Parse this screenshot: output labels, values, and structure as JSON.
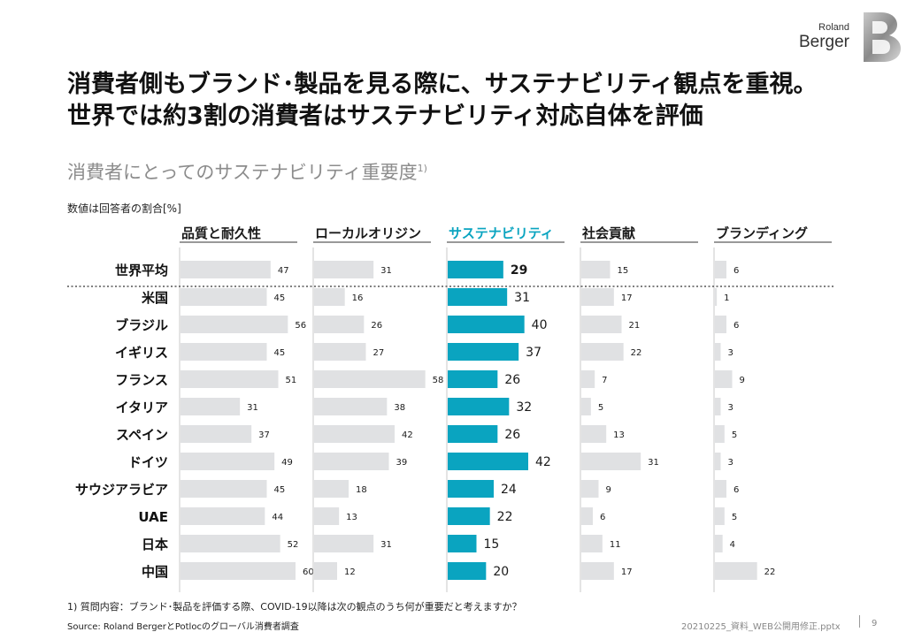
{
  "logo": {
    "line1": "Roland",
    "line2": "Berger"
  },
  "title": {
    "line1": "消費者側もブランド･製品を見る際に、サステナビリティ観点を重視。",
    "line2": "世界では約3割の消費者はサステナビリティ対応自体を評価"
  },
  "subtitle": {
    "text": "消費者にとってのサステナビリティ重要度",
    "sup": "1)"
  },
  "unit_note": "数値は回答者の割合[%]",
  "footnote": "1) 質問内容：ブランド･製品を評価する際、COVID-19以降は次の観点のうち何が重要だと考えますか？",
  "source": "Source: Roland BergerとPotlocのグローバル消費者調査",
  "filename": "20210225_資料_WEB公開用修正.pptx",
  "page_number": "9",
  "colors": {
    "gray_bar": "#e0e1e3",
    "highlight_bar": "#0aa4c0",
    "highlight_text": "#0aa4c0"
  },
  "chart_data": {
    "type": "bar",
    "orientation": "horizontal",
    "layout": "small-multiples",
    "unit": "%",
    "highlight_series": "サステナビリティ",
    "categories": [
      "世界平均",
      "米国",
      "ブラジル",
      "イギリス",
      "フランス",
      "イタリア",
      "スペイン",
      "ドイツ",
      "サウジアラビア",
      "UAE",
      "日本",
      "中国"
    ],
    "series": [
      {
        "name": "品質と耐久性",
        "values": [
          47,
          45,
          56,
          45,
          51,
          31,
          37,
          49,
          45,
          44,
          52,
          60
        ]
      },
      {
        "name": "ローカルオリジン",
        "values": [
          31,
          16,
          26,
          27,
          58,
          38,
          42,
          39,
          18,
          13,
          31,
          12
        ]
      },
      {
        "name": "サステナビリティ",
        "values": [
          29,
          31,
          40,
          37,
          26,
          32,
          26,
          42,
          24,
          22,
          15,
          20
        ]
      },
      {
        "name": "社会貢献",
        "values": [
          15,
          17,
          21,
          22,
          7,
          5,
          13,
          31,
          9,
          6,
          11,
          17
        ]
      },
      {
        "name": "ブランディング",
        "values": [
          6,
          1,
          6,
          3,
          9,
          3,
          5,
          3,
          6,
          5,
          4,
          22
        ]
      }
    ],
    "xlim": [
      0,
      60
    ]
  }
}
